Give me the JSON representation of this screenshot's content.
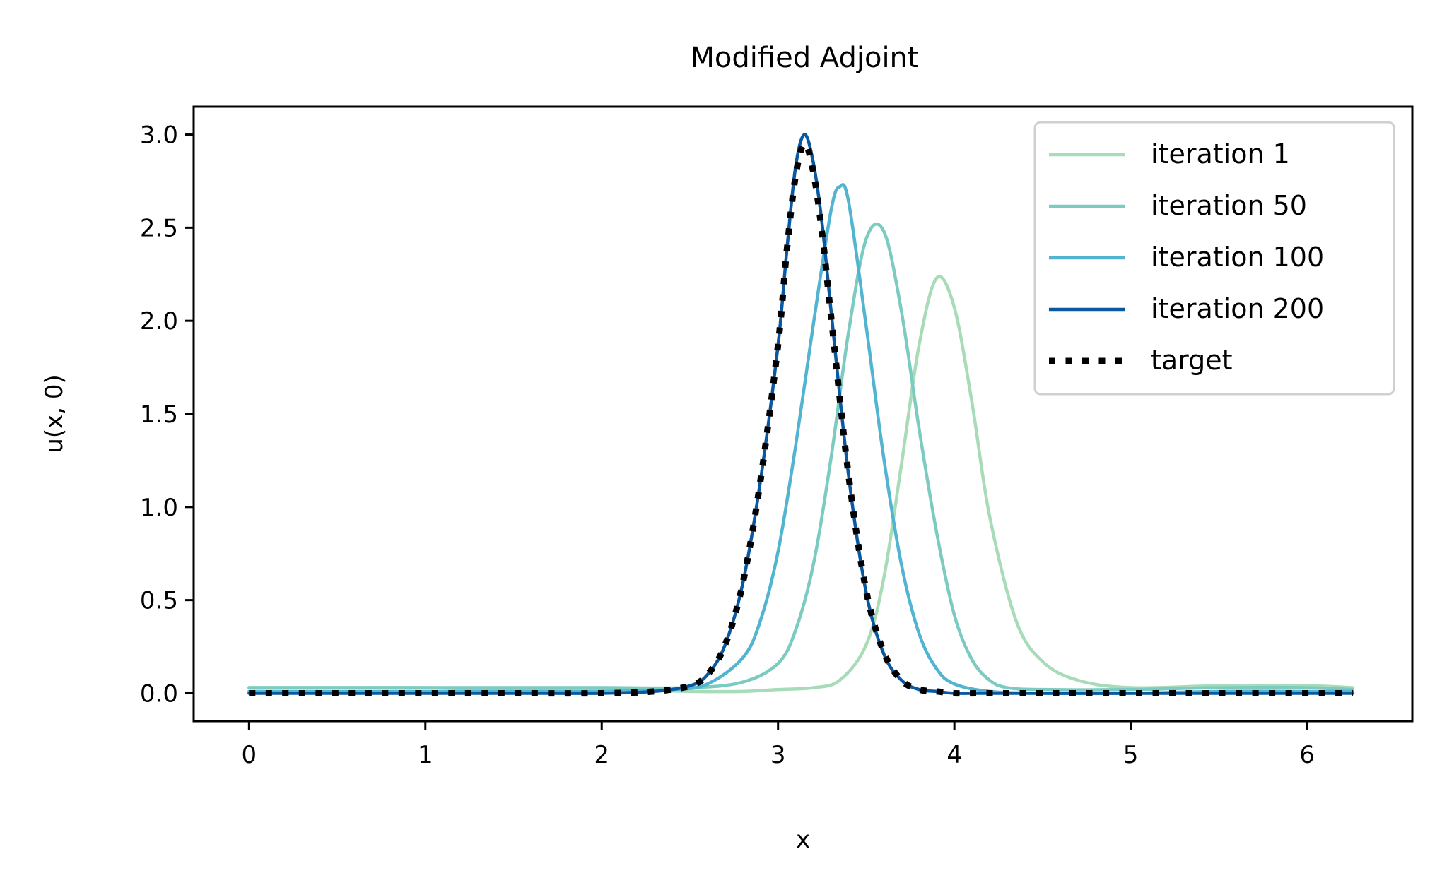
{
  "chart_data": {
    "type": "line",
    "title": "Modified Adjoint",
    "xlabel": "x",
    "ylabel": "u(x, 0)",
    "xlim": [
      -0.314,
      6.597
    ],
    "ylim": [
      -0.15,
      3.15
    ],
    "xticks": [
      0,
      1,
      2,
      3,
      4,
      5,
      6
    ],
    "xtick_labels": [
      "0",
      "1",
      "2",
      "3",
      "4",
      "5",
      "6"
    ],
    "yticks": [
      0.0,
      0.5,
      1.0,
      1.5,
      2.0,
      2.5,
      3.0
    ],
    "ytick_labels": [
      "0.0",
      "0.5",
      "1.0",
      "1.5",
      "2.0",
      "2.5",
      "3.0"
    ],
    "grid": false,
    "legend_position": "top-right",
    "series": [
      {
        "name": "iteration 1",
        "color": "#a8dcb8",
        "style": "solid",
        "x": [
          0,
          0.5,
          1.0,
          1.5,
          2.0,
          2.5,
          2.8,
          3.0,
          3.2,
          3.35,
          3.5,
          3.6,
          3.7,
          3.8,
          3.9,
          4.0,
          4.1,
          4.2,
          4.35,
          4.5,
          4.7,
          5.0,
          5.5,
          6.0,
          6.26
        ],
        "y": [
          0.03,
          0.03,
          0.03,
          0.02,
          0.02,
          0.01,
          0.01,
          0.02,
          0.03,
          0.07,
          0.26,
          0.62,
          1.23,
          1.87,
          2.23,
          2.07,
          1.56,
          0.95,
          0.39,
          0.17,
          0.07,
          0.03,
          0.04,
          0.04,
          0.03
        ]
      },
      {
        "name": "iteration 50",
        "color": "#7ccbc1",
        "style": "solid",
        "x": [
          0,
          0.5,
          1.0,
          1.5,
          2.0,
          2.5,
          2.8,
          3.0,
          3.1,
          3.2,
          3.3,
          3.4,
          3.5,
          3.6,
          3.7,
          3.8,
          3.9,
          4.0,
          4.1,
          4.2,
          4.3,
          4.5,
          5.0,
          5.5,
          6.0,
          6.26
        ],
        "y": [
          0.03,
          0.03,
          0.03,
          0.03,
          0.03,
          0.03,
          0.06,
          0.16,
          0.34,
          0.69,
          1.26,
          1.94,
          2.44,
          2.48,
          2.05,
          1.42,
          0.86,
          0.42,
          0.18,
          0.07,
          0.03,
          0.02,
          0.02,
          0.03,
          0.03,
          0.02
        ]
      },
      {
        "name": "iteration 100",
        "color": "#52b4d1",
        "style": "solid",
        "x": [
          0,
          0.5,
          1.0,
          1.5,
          2.0,
          2.4,
          2.6,
          2.8,
          2.9,
          3.0,
          3.1,
          3.2,
          3.3,
          3.35,
          3.4,
          3.5,
          3.6,
          3.7,
          3.8,
          3.9,
          4.0,
          4.2,
          4.5,
          5.0,
          5.5,
          6.0,
          6.26
        ],
        "y": [
          0.01,
          0.01,
          0.01,
          0.01,
          0.01,
          0.02,
          0.05,
          0.19,
          0.39,
          0.76,
          1.33,
          1.98,
          2.59,
          2.72,
          2.64,
          1.97,
          1.26,
          0.69,
          0.32,
          0.13,
          0.05,
          0.01,
          0.0,
          0.0,
          0.01,
          0.01,
          0.01
        ]
      },
      {
        "name": "iteration 200",
        "color": "#0a58a0",
        "style": "solid",
        "x": [
          0,
          0.5,
          1.0,
          1.5,
          2.0,
          2.3,
          2.5,
          2.6,
          2.7,
          2.8,
          2.9,
          3.0,
          3.05,
          3.1,
          3.15,
          3.2,
          3.25,
          3.3,
          3.4,
          3.5,
          3.6,
          3.7,
          3.8,
          3.9,
          4.0,
          4.2,
          4.5,
          5.0,
          5.5,
          6.0,
          6.26
        ],
        "y": [
          0.0,
          0.0,
          0.0,
          0.0,
          0.0,
          0.01,
          0.04,
          0.1,
          0.26,
          0.59,
          1.14,
          1.87,
          2.38,
          2.83,
          3.0,
          2.85,
          2.52,
          2.06,
          1.17,
          0.54,
          0.21,
          0.07,
          0.02,
          0.01,
          0.0,
          0.0,
          0.0,
          0.0,
          0.0,
          0.0,
          0.0
        ]
      },
      {
        "name": "target",
        "color": "#000000",
        "style": "dotted",
        "x": [
          0,
          0.5,
          1.0,
          1.5,
          2.0,
          2.3,
          2.5,
          2.6,
          2.7,
          2.8,
          2.9,
          3.0,
          3.05,
          3.1,
          3.15,
          3.2,
          3.25,
          3.3,
          3.4,
          3.5,
          3.6,
          3.7,
          3.8,
          3.9,
          4.0,
          4.2,
          4.5,
          5.0,
          5.5,
          6.0,
          6.26
        ],
        "y": [
          0.0,
          0.0,
          0.0,
          0.0,
          0.0,
          0.01,
          0.04,
          0.1,
          0.26,
          0.59,
          1.14,
          1.87,
          2.38,
          2.78,
          2.95,
          2.8,
          2.47,
          2.03,
          1.17,
          0.55,
          0.22,
          0.07,
          0.02,
          0.01,
          0.0,
          0.0,
          0.0,
          0.0,
          0.0,
          0.0,
          0.0
        ]
      }
    ]
  }
}
